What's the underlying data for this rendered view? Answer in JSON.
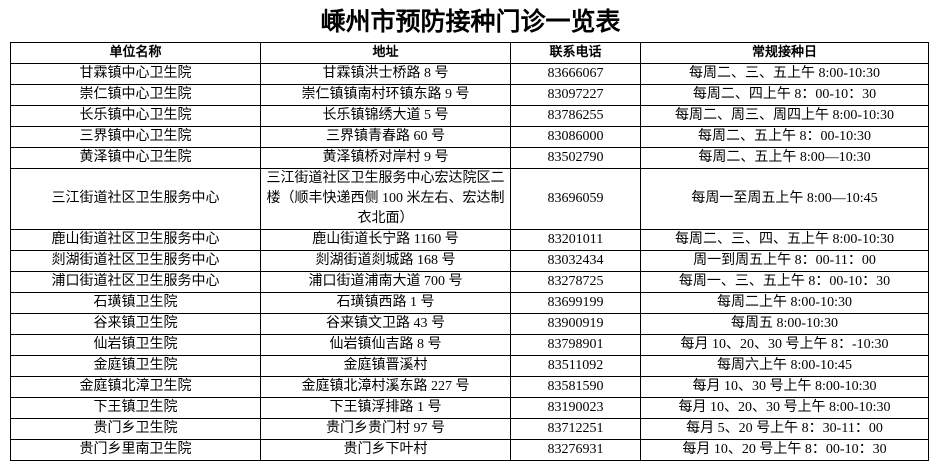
{
  "header": {
    "title": "嵊州市预防接种门诊一览表"
  },
  "table": {
    "columns": [
      "单位名称",
      "地址",
      "联系电话",
      "常规接种日"
    ],
    "rows": [
      [
        "甘霖镇中心卫生院",
        "甘霖镇洪士桥路 8 号",
        "83666067",
        "每周二、三、五上午 8:00-10:30"
      ],
      [
        "崇仁镇中心卫生院",
        "崇仁镇镇南村环镇东路 9 号",
        "83097227",
        "每周二、四上午 8：00-10：30"
      ],
      [
        "长乐镇中心卫生院",
        "长乐镇锦绣大道 5 号",
        "83786255",
        "每周二、周三、周四上午 8:00-10:30"
      ],
      [
        "三界镇中心卫生院",
        "三界镇青春路 60 号",
        "83086000",
        "每周二、五上午 8：00-10:30"
      ],
      [
        "黄泽镇中心卫生院",
        "黄泽镇桥对岸村 9 号",
        "83502790",
        "每周二、五上午 8:00—10:30"
      ],
      [
        "三江街道社区卫生服务中心",
        "三江街道社区卫生服务中心宏达院区二楼（顺丰快递西侧 100 米左右、宏达制衣北面）",
        "83696059",
        "每周一至周五上午 8:00—10:45"
      ],
      [
        "鹿山街道社区卫生服务中心",
        "鹿山街道长宁路 1160 号",
        "83201011",
        "每周二、三、四、五上午 8:00-10:30"
      ],
      [
        "剡湖街道社区卫生服务中心",
        "剡湖街道剡城路 168 号",
        "83032434",
        "周一到周五上午 8：00-11：00"
      ],
      [
        "浦口街道社区卫生服务中心",
        "浦口街道浦南大道 700 号",
        "83278725",
        "每周一、三、五上午 8：00-10：30"
      ],
      [
        "石璜镇卫生院",
        "石璜镇西路 1 号",
        "83699199",
        "每周二上午 8:00-10:30"
      ],
      [
        "谷来镇卫生院",
        "谷来镇文卫路 43 号",
        "83900919",
        "每周五 8:00-10:30"
      ],
      [
        "仙岩镇卫生院",
        "仙岩镇仙吉路 8 号",
        "83798901",
        "每月 10、20、30 号上午 8：-10:30"
      ],
      [
        "金庭镇卫生院",
        "金庭镇晋溪村",
        "83511092",
        "每周六上午 8:00-10:45"
      ],
      [
        "金庭镇北漳卫生院",
        "金庭镇北漳村溪东路 227 号",
        "83581590",
        "每月 10、30 号上午 8:00-10:30"
      ],
      [
        "下王镇卫生院",
        "下王镇浮排路 1 号",
        "83190023",
        "每月 10、20、30 号上午 8:00-10:30"
      ],
      [
        "贵门乡卫生院",
        "贵门乡贵门村 97 号",
        "83712251",
        "每月 5、20 号上午 8：30-11：00"
      ],
      [
        "贵门乡里南卫生院",
        "贵门乡下叶村",
        "83276931",
        "每月 10、20 号上午 8：00-10：30"
      ]
    ]
  }
}
